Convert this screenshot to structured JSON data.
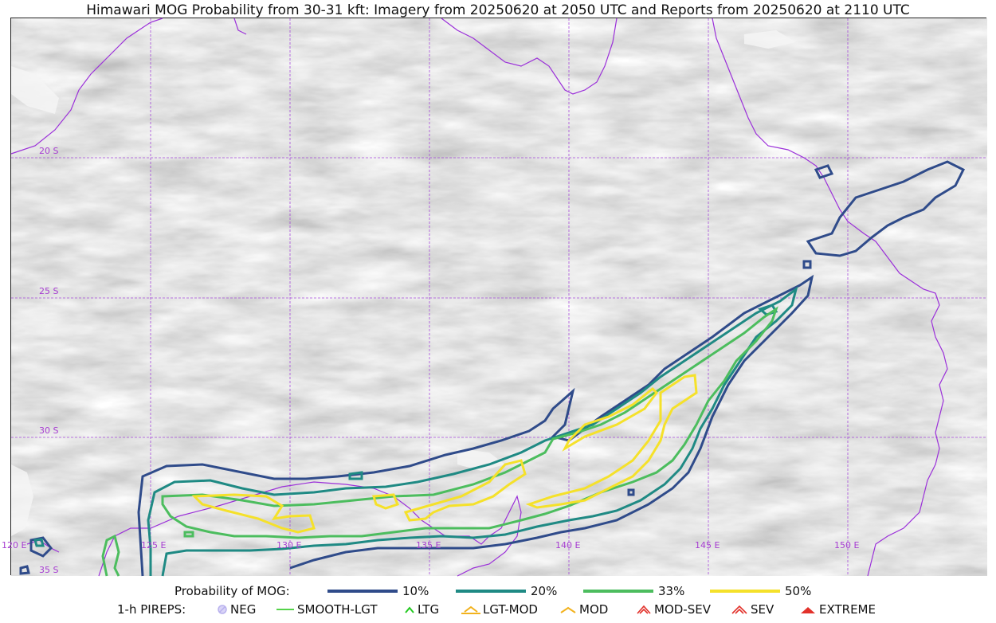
{
  "title": "Himawari MOG Probability from 30-31 kft: Imagery from 20250620 at 2050 UTC and Reports from 20250620 at 2110 UTC",
  "map": {
    "lat_labels": [
      "20 S",
      "25 S",
      "30 S",
      "35 S"
    ],
    "lon_labels": [
      "120 E",
      "125 E",
      "130 E",
      "135 E",
      "140 E",
      "145 E",
      "150 E"
    ],
    "gridline_color": "#9b30d9",
    "coastline_color": "#9b30d9"
  },
  "legend": {
    "probability_label": "Probability of MOG:",
    "probability_items": [
      {
        "label": "10%",
        "color": "#2f4b8a"
      },
      {
        "label": "20%",
        "color": "#1f8a84"
      },
      {
        "label": "33%",
        "color": "#4cbd5e"
      },
      {
        "label": "50%",
        "color": "#f5e12a"
      }
    ],
    "pireps_label": "1-h PIREPS:",
    "pirep_items": [
      {
        "label": "NEG",
        "color": "#b9b2ee",
        "icon": "neg-circle-icon"
      },
      {
        "label": "SMOOTH-LGT",
        "color": "#55d34a",
        "icon": "line-icon"
      },
      {
        "label": "LTG",
        "color": "#22c91f",
        "icon": "caret-icon"
      },
      {
        "label": "LGT-MOD",
        "color": "#f2b21d",
        "icon": "caret-bar-icon"
      },
      {
        "label": "MOD",
        "color": "#f2b21d",
        "icon": "caret-icon"
      },
      {
        "label": "MOD-SEV",
        "color": "#e2312a",
        "icon": "double-caret-icon"
      },
      {
        "label": "SEV",
        "color": "#e2312a",
        "icon": "double-caret-icon"
      },
      {
        "label": "EXTREME",
        "color": "#e2312a",
        "icon": "filled-caret-icon"
      }
    ]
  }
}
